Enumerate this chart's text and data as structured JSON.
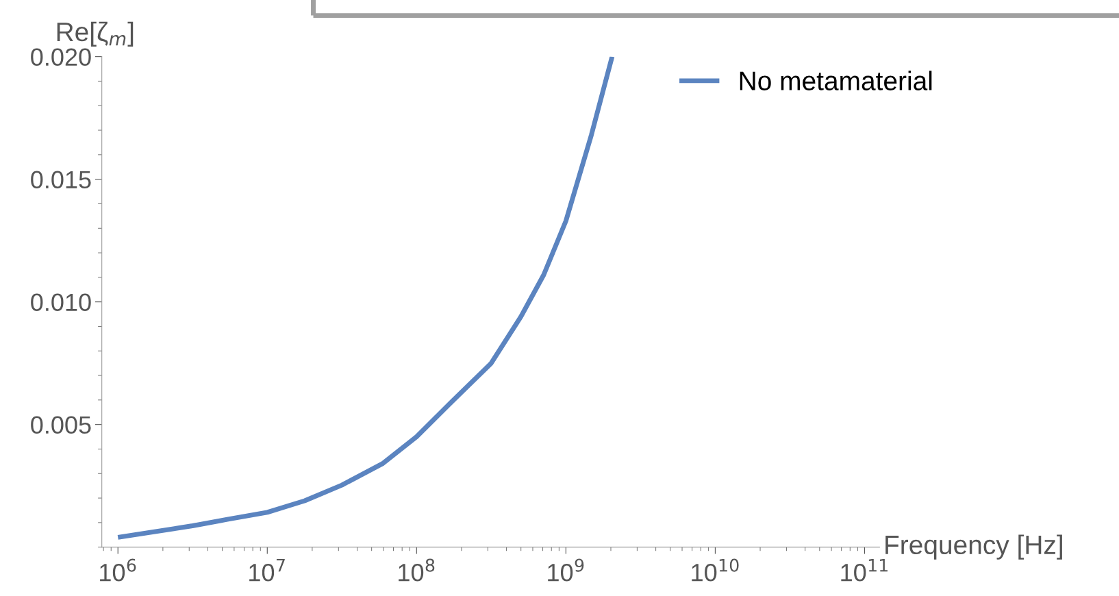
{
  "chart_data": {
    "type": "line",
    "xlabel": "Frequency [Hz]",
    "ylabel": "Re[ζ$_{m}$]",
    "x": [
      1000000.0,
      3160000.0,
      5400000.0,
      10000000.0,
      17800000.0,
      31600000.0,
      59000000.0,
      100000000.0,
      170000000.0,
      316000000.0,
      500000000.0,
      710000000.0,
      1000000000.0,
      1480000000.0,
      2040000000.0
    ],
    "series": [
      {
        "name": "No metamaterial",
        "color": "#5b84c0",
        "values": [
          0.0004,
          0.00087,
          0.00113,
          0.00142,
          0.00189,
          0.00253,
          0.0034,
          0.0045,
          0.0059,
          0.0075,
          0.0094,
          0.0111,
          0.0133,
          0.0168,
          0.02
        ]
      }
    ],
    "log": "x",
    "xlim": [
      780000.0,
      126000000000.0
    ],
    "ylim": [
      0,
      0.02
    ],
    "xticks": [
      {
        "value": 1000000.0,
        "label": "10$^{6}$"
      },
      {
        "value": 10000000.0,
        "label": "10$^{7}$"
      },
      {
        "value": 100000000.0,
        "label": "10$^{8}$"
      },
      {
        "value": 1000000000.0,
        "label": "10$^{9}$"
      },
      {
        "value": 10000000000.0,
        "label": "10$^{10}$"
      },
      {
        "value": 100000000000.0,
        "label": "10$^{11}$"
      }
    ],
    "yticks": [
      {
        "value": 0.005,
        "label": "0.005"
      },
      {
        "value": 0.01,
        "label": "0.010"
      },
      {
        "value": 0.015,
        "label": "0.015"
      },
      {
        "value": 0.02,
        "label": "0.020"
      }
    ],
    "grid": false,
    "legend": "top right",
    "marker": "none",
    "line_style": "solid"
  }
}
